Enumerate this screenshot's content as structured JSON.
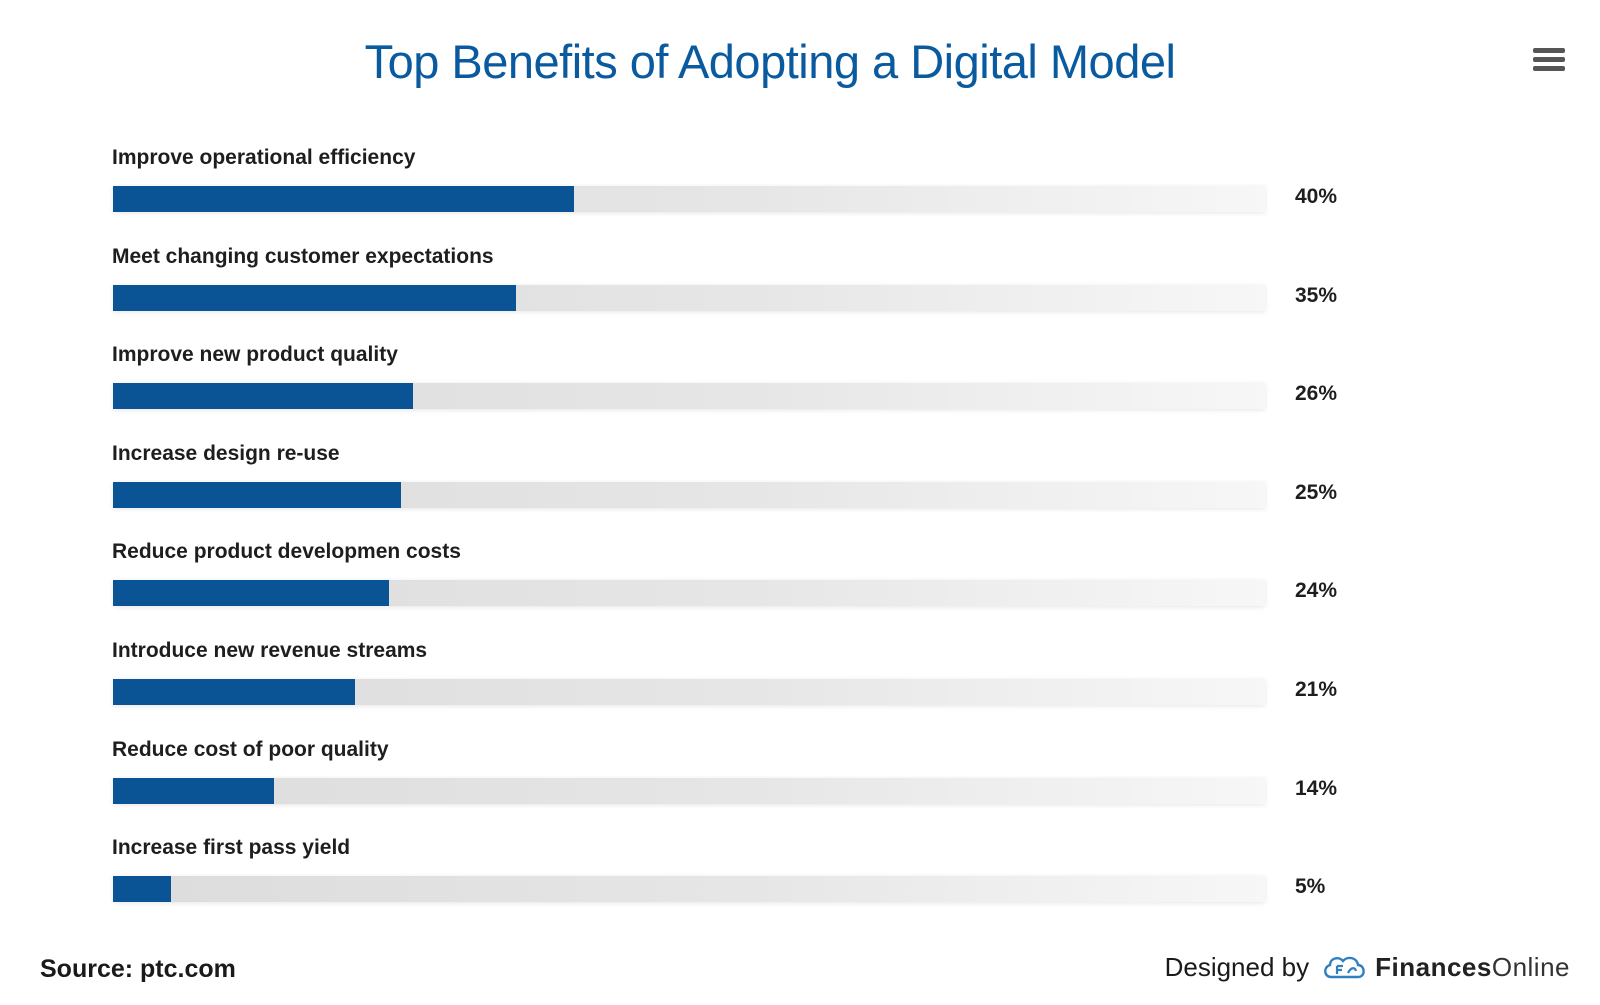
{
  "chart_data": {
    "type": "bar",
    "orientation": "horizontal",
    "title": "Top Benefits of Adopting a Digital Model",
    "categories": [
      "Improve operational efficiency",
      "Meet changing customer expectations",
      "Improve new product quality",
      "Increase design re-use",
      "Reduce product developmen costs",
      "Introduce new revenue streams",
      "Reduce cost of poor quality",
      "Increase first pass yield"
    ],
    "values": [
      40,
      35,
      26,
      25,
      24,
      21,
      14,
      5
    ],
    "value_labels": [
      "40%",
      "35%",
      "26%",
      "25%",
      "24%",
      "21%",
      "14%",
      "5%"
    ],
    "xlim": [
      0,
      100
    ],
    "unit": "%",
    "colors": {
      "bar": "#0a5496",
      "track": "#e2e2e2",
      "title": "#0a5aa0"
    },
    "grid": false,
    "legend": "none"
  },
  "footer": {
    "source": "Source: ptc.com",
    "designed_by": "Designed by",
    "brand_strong": "Finances",
    "brand_light": "Online"
  },
  "menu": {
    "icon": "hamburger-menu-icon"
  }
}
